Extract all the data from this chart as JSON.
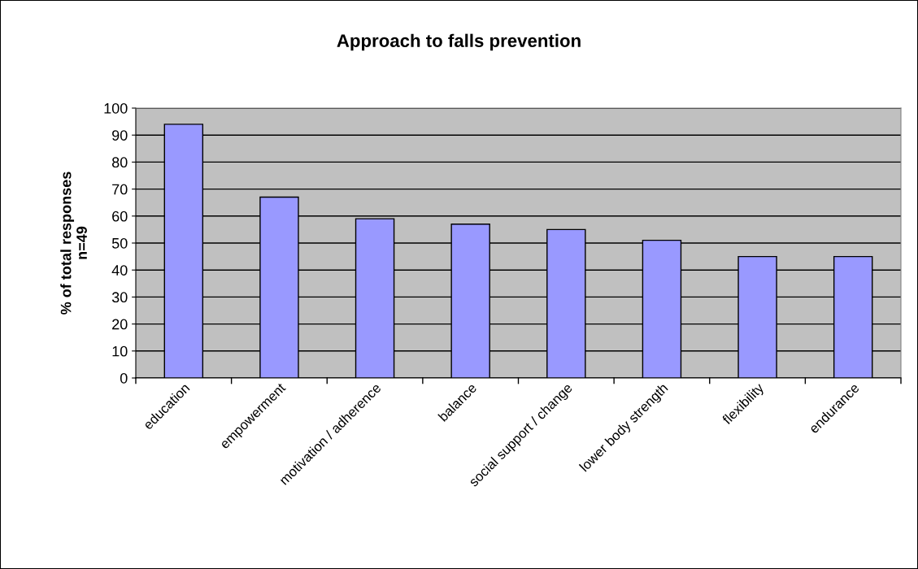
{
  "chart_data": {
    "type": "bar",
    "title": "Approach to falls prevention",
    "ylabel": "% of total responses\nn=49",
    "categories": [
      "education",
      "empowerment",
      "motivation / adherence",
      "balance",
      "social support / change",
      "lower body strength",
      "flexibility",
      "endurance"
    ],
    "values": [
      94,
      67,
      59,
      57,
      55,
      51,
      45,
      45
    ],
    "color": "#9999ff",
    "ylim": [
      0,
      100
    ],
    "yticks": [
      0,
      10,
      20,
      30,
      40,
      50,
      60,
      70,
      80,
      90,
      100
    ],
    "grid": "y"
  }
}
